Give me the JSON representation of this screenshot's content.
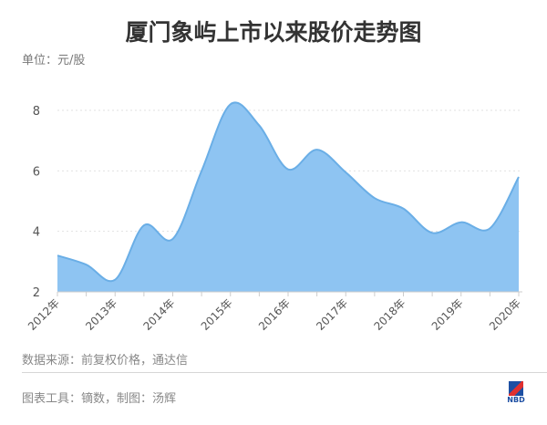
{
  "chart_data": {
    "type": "area",
    "title": "厦门象屿上市以来股价走势图",
    "ylabel": "单位：元/股",
    "x_tick_labels": [
      "2012年",
      "2013年",
      "2014年",
      "2015年",
      "2016年",
      "2017年",
      "2018年",
      "2019年",
      "2020年"
    ],
    "x": [
      2012,
      2012.5,
      2013,
      2013.5,
      2014,
      2014.5,
      2015,
      2015.5,
      2016,
      2016.5,
      2017,
      2017.5,
      2018,
      2018.5,
      2019,
      2019.5,
      2020
    ],
    "values": [
      3.2,
      2.9,
      2.4,
      4.2,
      3.75,
      6.0,
      8.2,
      7.5,
      6.05,
      6.7,
      5.95,
      5.1,
      4.75,
      3.95,
      4.3,
      4.1,
      5.8
    ],
    "ylim": [
      2,
      8.3
    ],
    "y_ticks": [
      2,
      4,
      6,
      8
    ],
    "grid": "horizontal dotted",
    "fill_color": "#8ec4f2",
    "line_color": "#6aaee6"
  },
  "footer": {
    "source": "数据来源：前复权价格，通达信",
    "tool": "图表工具：镝数，制图：汤辉",
    "logo_text": "NBD"
  }
}
